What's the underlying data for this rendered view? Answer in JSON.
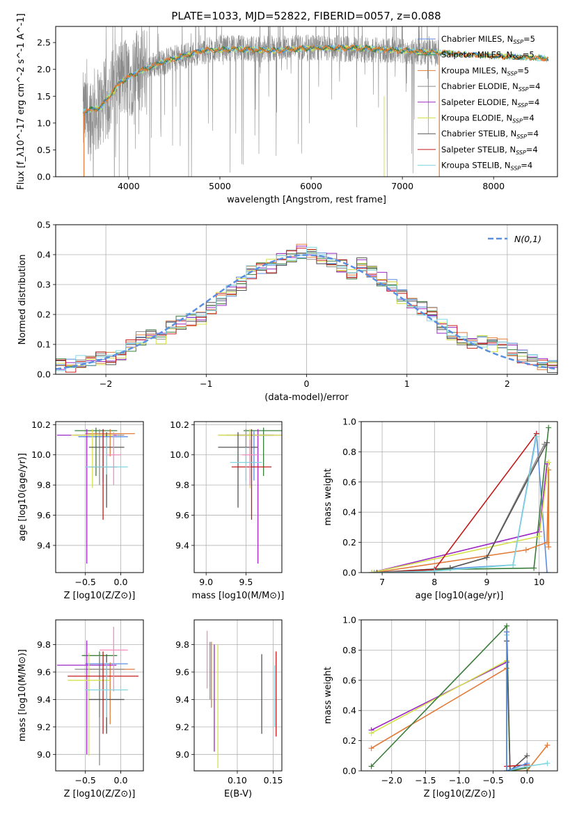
{
  "figure": {
    "title": "PLATE=1033, MJD=52822, FIBERID=0057, z=0.088"
  },
  "colors": {
    "Chabrier MILES": "#5a8ee0",
    "Salpeter MILES": "#3a7d3a",
    "Kroupa MILES": "#e07b39",
    "Chabrier ELODIE": "#8c8c8c",
    "Salpeter ELODIE": "#9b27c4",
    "Kroupa ELODIE": "#d4e04a",
    "Chabrier STELIB": "#555555",
    "Salpeter STELIB": "#c41a1a",
    "Kroupa STELIB": "#7fd6df",
    "pink": "#f28cbf",
    "gaussian": "#5a8ee0",
    "grid": "#b0b0b0"
  },
  "legend_labels": [
    {
      "key": "Chabrier MILES",
      "pre": "Chabrier MILES, N",
      "post": "=5"
    },
    {
      "key": "Salpeter MILES",
      "pre": "Salpeter MILES, N",
      "post": "=5"
    },
    {
      "key": "Kroupa MILES",
      "pre": "Kroupa MILES, N",
      "post": "=5"
    },
    {
      "key": "Chabrier ELODIE",
      "pre": "Chabrier ELODIE, N",
      "post": "=4"
    },
    {
      "key": "Salpeter ELODIE",
      "pre": "Salpeter ELODIE, N",
      "post": "=4"
    },
    {
      "key": "Kroupa ELODIE",
      "pre": "Kroupa ELODIE, N",
      "post": "=4"
    },
    {
      "key": "Chabrier STELIB",
      "pre": "Chabrier STELIB, N",
      "post": "=4"
    },
    {
      "key": "Salpeter STELIB",
      "pre": "Salpeter STELIB, N",
      "post": "=4"
    },
    {
      "key": "Kroupa STELIB",
      "pre": "Kroupa STELIB, N",
      "post": "=4"
    }
  ],
  "legend_sub": "SSP",
  "chart_data": [
    {
      "id": "spectrum",
      "type": "line",
      "xlabel": "wavelength [Angstrom, rest frame]",
      "ylabel": "Flux [f_λ10^-17 erg cm^-2 s^-1 A^-1]",
      "xlim": [
        3200,
        8700
      ],
      "ylim": [
        0.0,
        2.8
      ],
      "xticks": [
        4000,
        5000,
        6000,
        7000,
        8000
      ],
      "yticks": [
        0.0,
        0.5,
        1.0,
        1.5,
        2.0,
        2.5
      ],
      "grid": false,
      "legend": "right",
      "data_series": {
        "name": "data",
        "x_range": [
          3500,
          7400
        ],
        "profile": [
          [
            3500,
            1.15
          ],
          [
            3700,
            1.3
          ],
          [
            3900,
            1.8
          ],
          [
            4200,
            2.05
          ],
          [
            4600,
            2.25
          ],
          [
            5000,
            2.4
          ],
          [
            5500,
            2.38
          ],
          [
            6000,
            2.4
          ],
          [
            6500,
            2.38
          ],
          [
            7000,
            2.35
          ],
          [
            7400,
            2.3
          ]
        ]
      },
      "model_series": {
        "x_range": [
          3500,
          8600
        ],
        "profile": [
          [
            3500,
            1.2
          ],
          [
            3700,
            1.3
          ],
          [
            3900,
            1.75
          ],
          [
            4100,
            1.95
          ],
          [
            4400,
            2.15
          ],
          [
            4800,
            2.35
          ],
          [
            5200,
            2.38
          ],
          [
            5600,
            2.35
          ],
          [
            6000,
            2.4
          ],
          [
            6500,
            2.4
          ],
          [
            7000,
            2.35
          ],
          [
            7500,
            2.3
          ],
          [
            8000,
            2.25
          ],
          [
            8600,
            2.2
          ]
        ]
      }
    },
    {
      "id": "residuals",
      "type": "step",
      "xlabel": "(data-model)/error",
      "ylabel": "Normed distribution",
      "xlim": [
        -2.5,
        2.5
      ],
      "ylim": [
        0.0,
        0.5
      ],
      "xticks": [
        -2,
        -1,
        0,
        1,
        2
      ],
      "yticks": [
        0.0,
        0.1,
        0.2,
        0.3,
        0.4,
        0.5
      ],
      "grid": true,
      "legend": "top-right",
      "reference": {
        "name": "N(0,1)",
        "mu": 0,
        "sigma": 1
      },
      "bin_edges_start": -2.5,
      "bin_width": 0.1,
      "base_hist": [
        0.03,
        0.03,
        0.04,
        0.05,
        0.05,
        0.05,
        0.07,
        0.1,
        0.12,
        0.13,
        0.12,
        0.16,
        0.17,
        0.18,
        0.19,
        0.22,
        0.25,
        0.28,
        0.3,
        0.34,
        0.35,
        0.36,
        0.38,
        0.4,
        0.41,
        0.4,
        0.39,
        0.38,
        0.36,
        0.34,
        0.37,
        0.34,
        0.32,
        0.3,
        0.26,
        0.24,
        0.22,
        0.2,
        0.16,
        0.14,
        0.12,
        0.11,
        0.11,
        0.1,
        0.1,
        0.08,
        0.06,
        0.05,
        0.04,
        0.03
      ]
    },
    {
      "id": "age-vs-Z",
      "type": "errorbar",
      "xlabel": "Z [log10(Z/Z⊙)]",
      "ylabel": "age [log10(age/yr)]",
      "xlim": [
        -0.92,
        0.32
      ],
      "ylim": [
        9.22,
        10.22
      ],
      "xticks": [
        -0.5,
        0.0
      ],
      "yticks": [
        9.4,
        9.6,
        9.8,
        10.0,
        10.2
      ],
      "grid": true,
      "points": [
        {
          "key": "Chabrier MILES",
          "x": -0.25,
          "y": 10.12,
          "xerr": 0.35,
          "yerr_lo": 0.3,
          "yerr_hi": 0.05
        },
        {
          "key": "Salpeter MILES",
          "x": -0.35,
          "y": 10.16,
          "xerr": 0.3,
          "yerr_lo": 0.3,
          "yerr_hi": 0.02
        },
        {
          "key": "Kroupa MILES",
          "x": -0.15,
          "y": 10.14,
          "xerr": 0.35,
          "yerr_lo": 0.15,
          "yerr_hi": 0.03
        },
        {
          "key": "Chabrier ELODIE",
          "x": -0.3,
          "y": 10.13,
          "xerr": 0.35,
          "yerr_lo": 0.33,
          "yerr_hi": 0.04
        },
        {
          "key": "Salpeter ELODIE",
          "x": -0.48,
          "y": 10.13,
          "xerr": 0.42,
          "yerr_lo": 0.85,
          "yerr_hi": 0.04
        },
        {
          "key": "Kroupa ELODIE",
          "x": -0.4,
          "y": 10.13,
          "xerr": 0.3,
          "yerr_lo": 0.35,
          "yerr_hi": 0.04
        },
        {
          "key": "Chabrier STELIB",
          "x": -0.2,
          "y": 10.05,
          "xerr": 0.25,
          "yerr_lo": 0.4,
          "yerr_hi": 0.1
        },
        {
          "key": "Salpeter STELIB",
          "x": -0.25,
          "y": 9.92,
          "xerr": 0.2,
          "yerr_lo": 0.35,
          "yerr_hi": 0.25
        },
        {
          "key": "Kroupa STELIB",
          "x": -0.2,
          "y": 9.92,
          "xerr": 0.3,
          "yerr_lo": 0.05,
          "yerr_hi": 0.2
        },
        {
          "key": "pink",
          "x": -0.1,
          "y": 10.0,
          "xerr": 0.1,
          "yerr_lo": 0.2,
          "yerr_hi": 0.15
        }
      ]
    },
    {
      "id": "age-vs-mass",
      "type": "errorbar",
      "xlabel": "mass [log10(M/M⊙)]",
      "ylabel": "",
      "xlim": [
        8.85,
        9.95
      ],
      "ylim": [
        9.22,
        10.22
      ],
      "xticks": [
        9.0,
        9.5
      ],
      "yticks": [
        9.4,
        9.6,
        9.8,
        10.0,
        10.2
      ],
      "grid": true,
      "points": [
        {
          "key": "Salpeter MILES",
          "x": 9.72,
          "y": 10.16,
          "xerr": 0.25,
          "yerr_lo": 0.3,
          "yerr_hi": 0.02
        },
        {
          "key": "Kroupa MILES",
          "x": 9.55,
          "y": 10.13,
          "xerr": 0.3,
          "yerr_lo": 0.2,
          "yerr_hi": 0.04
        },
        {
          "key": "Chabrier MILES",
          "x": 9.6,
          "y": 10.13,
          "xerr": 0.2,
          "yerr_lo": 0.3,
          "yerr_hi": 0.03
        },
        {
          "key": "Chabrier ELODIE",
          "x": 9.5,
          "y": 10.13,
          "xerr": 0.35,
          "yerr_lo": 0.3,
          "yerr_hi": 0.04
        },
        {
          "key": "Salpeter ELODIE",
          "x": 9.65,
          "y": 10.13,
          "xerr": 0.3,
          "yerr_lo": 0.85,
          "yerr_hi": 0.04
        },
        {
          "key": "Kroupa ELODIE",
          "x": 9.55,
          "y": 10.13,
          "xerr": 0.4,
          "yerr_lo": 0.35,
          "yerr_hi": 0.04
        },
        {
          "key": "Chabrier STELIB",
          "x": 9.4,
          "y": 10.05,
          "xerr": 0.25,
          "yerr_lo": 0.4,
          "yerr_hi": 0.1
        },
        {
          "key": "Salpeter STELIB",
          "x": 9.57,
          "y": 9.92,
          "xerr": 0.25,
          "yerr_lo": 0.35,
          "yerr_hi": 0.25
        },
        {
          "key": "Kroupa STELIB",
          "x": 9.5,
          "y": 9.95,
          "xerr": 0.2,
          "yerr_lo": 0.15,
          "yerr_hi": 0.1
        },
        {
          "key": "pink",
          "x": 9.55,
          "y": 10.0,
          "xerr": 0.1,
          "yerr_lo": 0.2,
          "yerr_hi": 0.1
        }
      ]
    },
    {
      "id": "massweight-vs-age",
      "type": "line",
      "xlabel": "age [log10(age/yr)]",
      "ylabel": "mass weight",
      "xlim": [
        6.6,
        10.35
      ],
      "ylim": [
        0.0,
        1.0
      ],
      "xticks": [
        7,
        8,
        9,
        10
      ],
      "yticks": [
        0.0,
        0.2,
        0.4,
        0.6,
        0.8,
        1.0
      ],
      "grid": true,
      "series": [
        {
          "key": "Chabrier MILES",
          "x": [
            6.85,
            8.0,
            9.5,
            9.95,
            10.15
          ],
          "y": [
            0.0,
            0.02,
            0.05,
            0.92,
            0.0
          ]
        },
        {
          "key": "Salpeter MILES",
          "x": [
            6.85,
            8.0,
            9.9,
            10.18
          ],
          "y": [
            0.0,
            0.02,
            0.03,
            0.96
          ]
        },
        {
          "key": "Kroupa MILES",
          "x": [
            6.85,
            9.75,
            10.15,
            10.18,
            10.18
          ],
          "y": [
            0.0,
            0.15,
            0.2,
            0.68,
            0.17
          ]
        },
        {
          "key": "Chabrier ELODIE",
          "x": [
            6.85,
            8.3,
            9.0,
            10.1
          ],
          "y": [
            0.0,
            0.03,
            0.1,
            0.85
          ]
        },
        {
          "key": "Salpeter ELODIE",
          "x": [
            6.8,
            10.0,
            10.15
          ],
          "y": [
            0.0,
            0.27,
            0.72
          ]
        },
        {
          "key": "Kroupa ELODIE",
          "x": [
            6.8,
            10.0,
            10.18
          ],
          "y": [
            0.0,
            0.24,
            0.73
          ]
        },
        {
          "key": "Chabrier STELIB",
          "x": [
            6.85,
            8.3,
            9.0,
            10.15
          ],
          "y": [
            0.0,
            0.03,
            0.1,
            0.86
          ]
        },
        {
          "key": "Salpeter STELIB",
          "x": [
            6.9,
            8.0,
            9.95
          ],
          "y": [
            0.0,
            0.02,
            0.92
          ]
        },
        {
          "key": "Kroupa STELIB",
          "x": [
            6.85,
            8.0,
            9.5,
            9.95
          ],
          "y": [
            0.0,
            0.01,
            0.05,
            0.9
          ]
        }
      ]
    },
    {
      "id": "mass-vs-Z",
      "type": "errorbar",
      "xlabel": "Z [log10(Z/Z⊙)]",
      "ylabel": "mass [log10(M/M⊙)]",
      "xlim": [
        -0.92,
        0.32
      ],
      "ylim": [
        8.88,
        9.98
      ],
      "xticks": [
        -0.5,
        0.0
      ],
      "yticks": [
        9.0,
        9.2,
        9.4,
        9.6,
        9.8
      ],
      "grid": true,
      "points": [
        {
          "key": "Chabrier MILES",
          "x": -0.2,
          "y": 9.66,
          "xerr": 0.3,
          "yerr_lo": 0.5,
          "yerr_hi": 0.06
        },
        {
          "key": "Salpeter MILES",
          "x": -0.3,
          "y": 9.72,
          "xerr": 0.25,
          "yerr_lo": 0.45,
          "yerr_hi": 0.03
        },
        {
          "key": "Kroupa MILES",
          "x": -0.15,
          "y": 9.62,
          "xerr": 0.35,
          "yerr_lo": 0.4,
          "yerr_hi": 0.05
        },
        {
          "key": "Chabrier ELODIE",
          "x": -0.3,
          "y": 9.62,
          "xerr": 0.35,
          "yerr_lo": 0.7,
          "yerr_hi": 0.1
        },
        {
          "key": "Salpeter ELODIE",
          "x": -0.48,
          "y": 9.65,
          "xerr": 0.42,
          "yerr_lo": 0.65,
          "yerr_hi": 0.18
        },
        {
          "key": "Kroupa ELODIE",
          "x": -0.45,
          "y": 9.54,
          "xerr": 0.3,
          "yerr_lo": 0.55,
          "yerr_hi": 0.2
        },
        {
          "key": "Chabrier STELIB",
          "x": -0.2,
          "y": 9.4,
          "xerr": 0.25,
          "yerr_lo": 0.25,
          "yerr_hi": 0.33
        },
        {
          "key": "Salpeter STELIB",
          "x": -0.25,
          "y": 9.57,
          "xerr": 0.5,
          "yerr_lo": 0.42,
          "yerr_hi": 0.18
        },
        {
          "key": "Kroupa STELIB",
          "x": -0.2,
          "y": 9.47,
          "xerr": 0.3,
          "yerr_lo": 0.2,
          "yerr_hi": 0.2
        },
        {
          "key": "pink",
          "x": -0.1,
          "y": 9.76,
          "xerr": 0.2,
          "yerr_lo": 0.3,
          "yerr_hi": 0.17
        }
      ]
    },
    {
      "id": "mass-vs-EBV",
      "type": "errorbar",
      "xlabel": "E(B-V)",
      "ylabel": "",
      "xlim": [
        0.04,
        0.162
      ],
      "ylim": [
        8.88,
        9.98
      ],
      "xticks": [
        0.1,
        0.15
      ],
      "yticks": [
        9.0,
        9.2,
        9.4,
        9.6,
        9.8
      ],
      "grid": true,
      "points": [
        {
          "key": "Kroupa MILES",
          "x": 0.064,
          "y": 9.62,
          "xerr": 0,
          "yerr_lo": 0.28,
          "yerr_hi": 0.2
        },
        {
          "key": "Salpeter ELODIE",
          "x": 0.068,
          "y": 9.6,
          "xerr": 0,
          "yerr_lo": 0.58,
          "yerr_hi": 0.2
        },
        {
          "key": "Kroupa ELODIE",
          "x": 0.073,
          "y": 9.55,
          "xerr": 0,
          "yerr_lo": 0.65,
          "yerr_hi": 0.25
        },
        {
          "key": "Chabrier ELODIE",
          "x": 0.062,
          "y": 9.6,
          "xerr": 0,
          "yerr_lo": 0.2,
          "yerr_hi": 0.22
        },
        {
          "key": "pink",
          "x": 0.058,
          "y": 9.7,
          "xerr": 0,
          "yerr_lo": 0.22,
          "yerr_hi": 0.2
        },
        {
          "key": "Chabrier STELIB",
          "x": 0.134,
          "y": 9.45,
          "xerr": 0,
          "yerr_lo": 0.3,
          "yerr_hi": 0.28
        },
        {
          "key": "Salpeter STELIB",
          "x": 0.154,
          "y": 9.45,
          "xerr": 0,
          "yerr_lo": 0.32,
          "yerr_hi": 0.3
        },
        {
          "key": "Kroupa STELIB",
          "x": 0.152,
          "y": 9.45,
          "xerr": 0,
          "yerr_lo": 0.25,
          "yerr_hi": 0.2
        }
      ]
    },
    {
      "id": "massweight-vs-Z",
      "type": "line",
      "xlabel": "Z [log10(Z/Z⊙)]",
      "ylabel": "mass weight",
      "xlim": [
        -2.45,
        0.45
      ],
      "ylim": [
        0.0,
        1.0
      ],
      "xticks": [
        -2.0,
        -1.5,
        -1.0,
        -0.5,
        0.0
      ],
      "yticks": [
        0.0,
        0.2,
        0.4,
        0.6,
        0.8,
        1.0
      ],
      "grid": true,
      "series": [
        {
          "key": "Salpeter ELODIE",
          "x": [
            -2.3,
            -0.3,
            -0.3,
            0.0
          ],
          "y": [
            0.27,
            0.72,
            0.0,
            0.03
          ]
        },
        {
          "key": "Kroupa ELODIE",
          "x": [
            -2.3,
            -0.3,
            -0.25,
            0.0
          ],
          "y": [
            0.25,
            0.73,
            0.0,
            0.0
          ]
        },
        {
          "key": "Kroupa MILES",
          "x": [
            -2.3,
            -0.3,
            -0.3,
            0.0,
            0.3
          ],
          "y": [
            0.15,
            0.68,
            0.0,
            0.0,
            0.17
          ]
        },
        {
          "key": "Salpeter MILES",
          "x": [
            -2.3,
            -0.3,
            -0.25,
            0.0
          ],
          "y": [
            0.03,
            0.96,
            0.0,
            0.02
          ]
        },
        {
          "key": "Chabrier STELIB",
          "x": [
            -0.3,
            -0.25,
            0.0
          ],
          "y": [
            0.86,
            0.0,
            0.1
          ]
        },
        {
          "key": "Salpeter STELIB",
          "x": [
            -0.3,
            -0.3,
            0.0
          ],
          "y": [
            0.92,
            0.03,
            0.04
          ]
        },
        {
          "key": "Kroupa STELIB",
          "x": [
            -0.3,
            -0.3,
            0.0,
            0.3
          ],
          "y": [
            0.9,
            0.0,
            0.03,
            0.05
          ]
        },
        {
          "key": "Chabrier MILES",
          "x": [
            -0.3,
            -0.3,
            0.0
          ],
          "y": [
            0.92,
            0.0,
            0.05
          ]
        }
      ]
    }
  ]
}
